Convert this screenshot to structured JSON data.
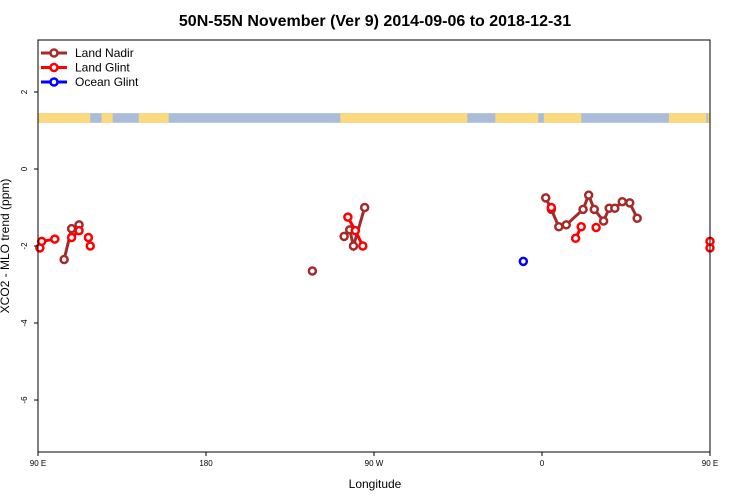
{
  "chart_data": {
    "type": "line",
    "title": "50N-55N November (Ver 9)   2014-09-06 to 2018-12-31",
    "xlabel": "Longitude",
    "ylabel": "XCO2 - MLO trend (ppm)",
    "xlim": [
      90,
      450
    ],
    "ylim": [
      -7.35,
      3.35
    ],
    "x_ticks": [
      {
        "value": 90,
        "label": "90 E"
      },
      {
        "value": 180,
        "label": "180"
      },
      {
        "value": 270,
        "label": "90 W"
      },
      {
        "value": 360,
        "label": "0"
      },
      {
        "value": 450,
        "label": "90 E"
      },
      {
        "value": 540,
        "label": "180"
      }
    ],
    "y_ticks": [
      {
        "value": 2,
        "label": "2"
      },
      {
        "value": 0,
        "label": "0"
      },
      {
        "value": -2,
        "label": "-2"
      },
      {
        "value": -4,
        "label": "-4"
      },
      {
        "value": -6,
        "label": "-6"
      }
    ],
    "legend_position": "top-left",
    "land_strip": {
      "y_top": 1.45,
      "y_bottom": 1.2,
      "ocean_color": "#a9bcd9",
      "land_color": "#fcd97d"
    },
    "series": [
      {
        "name": "Land Nadir",
        "color": "#a52a2a",
        "segments": [
          [
            [
              104,
              -2.35
            ],
            [
              108,
              -1.55
            ],
            [
              112,
              -1.45
            ]
          ],
          [
            [
              237,
              -2.65
            ]
          ],
          [
            [
              254,
              -1.75
            ],
            [
              257,
              -1.58
            ],
            [
              259,
              -2.0
            ],
            [
              265,
              -1.0
            ]
          ],
          [
            [
              362,
              -0.75
            ],
            [
              365,
              -1.05
            ],
            [
              369,
              -1.5
            ],
            [
              373,
              -1.45
            ],
            [
              382,
              -1.05
            ],
            [
              385,
              -0.68
            ],
            [
              388,
              -1.05
            ],
            [
              393,
              -1.35
            ],
            [
              396,
              -1.02
            ],
            [
              399,
              -1.02
            ],
            [
              403,
              -0.85
            ],
            [
              407,
              -0.88
            ],
            [
              411,
              -1.28
            ]
          ],
          [
            [
              466,
              -2.35
            ],
            [
              470,
              -1.58
            ],
            [
              474,
              -1.48
            ],
            [
              482,
              -2.0
            ]
          ]
        ]
      },
      {
        "name": "Land Glint",
        "color": "#ff0000",
        "segments": [
          [
            [
              91,
              -2.05
            ],
            [
              92,
              -1.88
            ],
            [
              99,
              -1.82
            ]
          ],
          [
            [
              108,
              -1.78
            ],
            [
              112,
              -1.6
            ]
          ],
          [
            [
              117,
              -1.78
            ]
          ],
          [
            [
              118,
              -2.0
            ]
          ],
          [
            [
              256,
              -1.25
            ],
            [
              260,
              -1.6
            ],
            [
              264,
              -2.0
            ]
          ],
          [
            [
              365,
              -1.0
            ]
          ],
          [
            [
              378,
              -1.8
            ],
            [
              381,
              -1.5
            ]
          ],
          [
            [
              389,
              -1.52
            ]
          ],
          [
            [
              450,
              -2.05
            ],
            [
              450,
              -1.88
            ],
            [
              459,
              -1.82
            ]
          ],
          [
            [
              468,
              -1.78
            ],
            [
              472,
              -1.6
            ]
          ],
          [
            [
              477,
              -1.78
            ]
          ]
        ]
      },
      {
        "name": "Ocean Glint",
        "color": "#0000ff",
        "segments": [
          [
            [
              350,
              -2.4
            ]
          ]
        ]
      }
    ]
  }
}
